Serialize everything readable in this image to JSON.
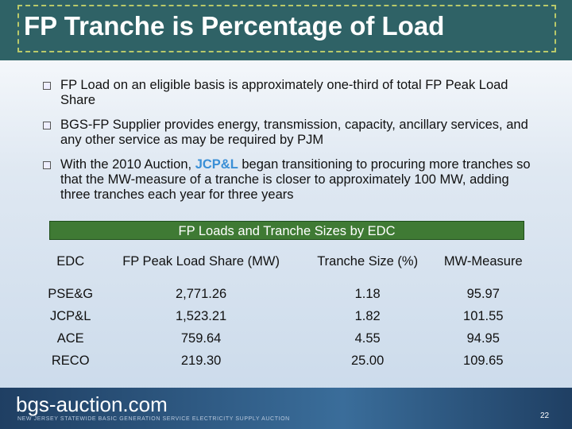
{
  "header": {
    "title": "FP Tranche is Percentage of Load"
  },
  "bullets": [
    {
      "parts": [
        "FP Load on an eligible basis is approximately one-third of total FP Peak Load Share"
      ]
    },
    {
      "parts": [
        "BGS-FP Supplier provides energy, transmission, capacity, ancillary services, and any other service as may be required by PJM"
      ]
    },
    {
      "parts": [
        "With the 2010 Auction, ",
        "JCP&L",
        " began transitioning to procuring more tranches so that the MW-measure of a tranche is closer to approximately 100 MW, adding three tranches each year for three years"
      ]
    }
  ],
  "table": {
    "title": "FP Loads and Tranche Sizes by EDC",
    "columns": [
      "EDC",
      "FP Peak Load Share (MW)",
      "Tranche Size (%)",
      "MW-Measure"
    ],
    "rows": [
      [
        "PSE&G",
        "2,771.26",
        "1.18",
        "95.97"
      ],
      [
        "JCP&L",
        "1,523.21",
        "1.82",
        "101.55"
      ],
      [
        "ACE",
        "759.64",
        "4.55",
        "94.95"
      ],
      [
        "RECO",
        "219.30",
        "25.00",
        "109.65"
      ]
    ]
  },
  "footer": {
    "logo": "bgs-auction.com",
    "tagline": "NEW JERSEY STATEWIDE BASIC GENERATION SERVICE ELECTRICITY SUPPLY AUCTION",
    "page": "22"
  }
}
